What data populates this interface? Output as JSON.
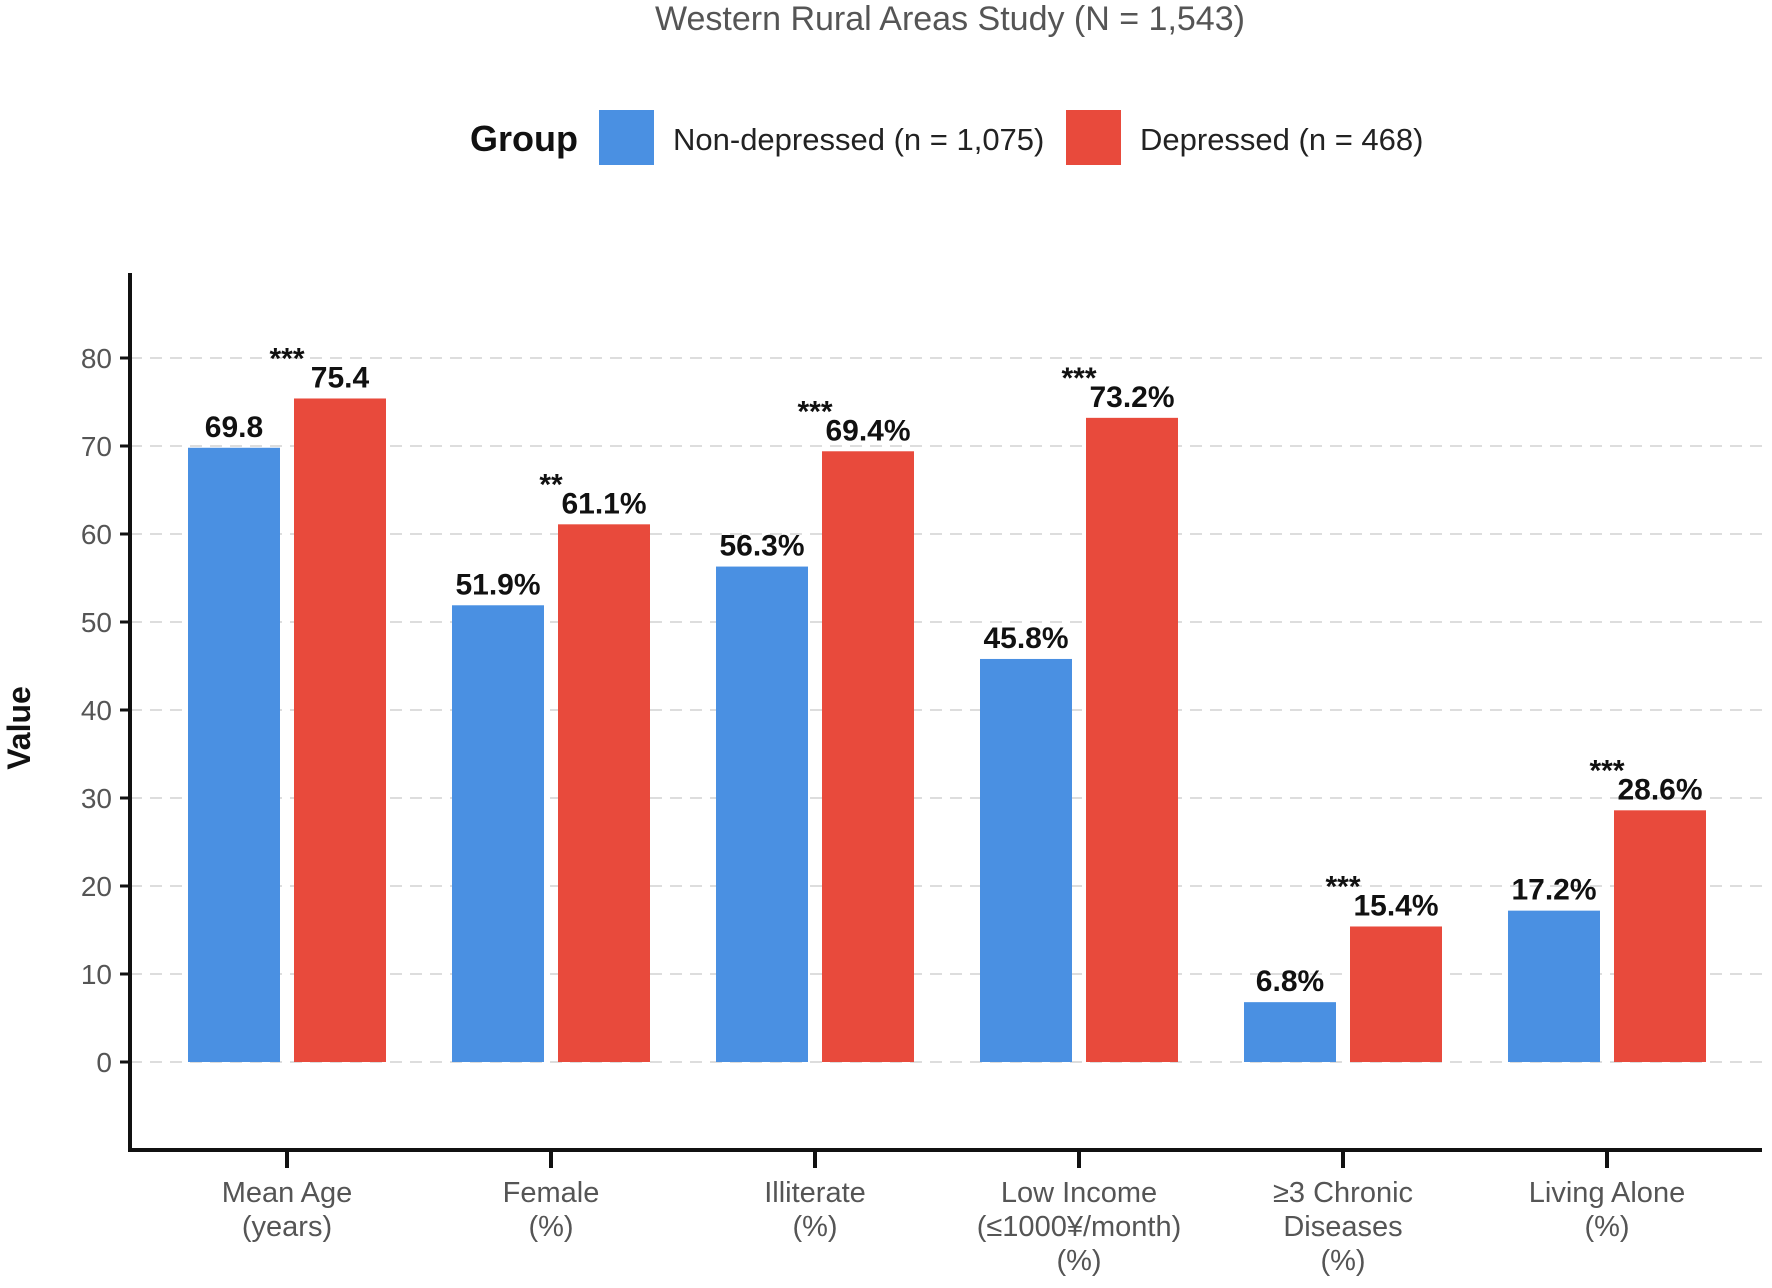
{
  "chart_data": {
    "type": "bar",
    "title": "Western Rural Areas Study (N = 1,543)",
    "legend_title": "Group",
    "legend_position": "top",
    "ylabel": "Value",
    "xlabel": "",
    "ylim": [
      -10,
      88
    ],
    "yticks": [
      0,
      10,
      20,
      30,
      40,
      50,
      60,
      70,
      80
    ],
    "grid": "horizontal-dashed",
    "categories": [
      [
        "Mean Age",
        "(years)"
      ],
      [
        "Female",
        "(%)"
      ],
      [
        "Illiterate",
        "(%)"
      ],
      [
        "Low Income",
        "(≤1000¥/month)",
        "(%)"
      ],
      [
        "≥3 Chronic",
        "Diseases",
        "(%)"
      ],
      [
        "Living Alone",
        "(%)"
      ]
    ],
    "series": [
      {
        "name": "Non-depressed (n = 1,075)",
        "color": "#4A90E2",
        "values": [
          69.8,
          51.9,
          56.3,
          45.8,
          6.8,
          17.2
        ],
        "labels": [
          "69.8",
          "51.9%",
          "56.3%",
          "45.8%",
          "6.8%",
          "17.2%"
        ]
      },
      {
        "name": "Depressed (n = 468)",
        "color": "#E84A3C",
        "values": [
          75.4,
          61.1,
          69.4,
          73.2,
          15.4,
          28.6
        ],
        "labels": [
          "75.4",
          "61.1%",
          "69.4%",
          "73.2%",
          "15.4%",
          "28.6%"
        ]
      }
    ],
    "significance": [
      "***",
      "**",
      "***",
      "***",
      "***",
      "***"
    ]
  }
}
